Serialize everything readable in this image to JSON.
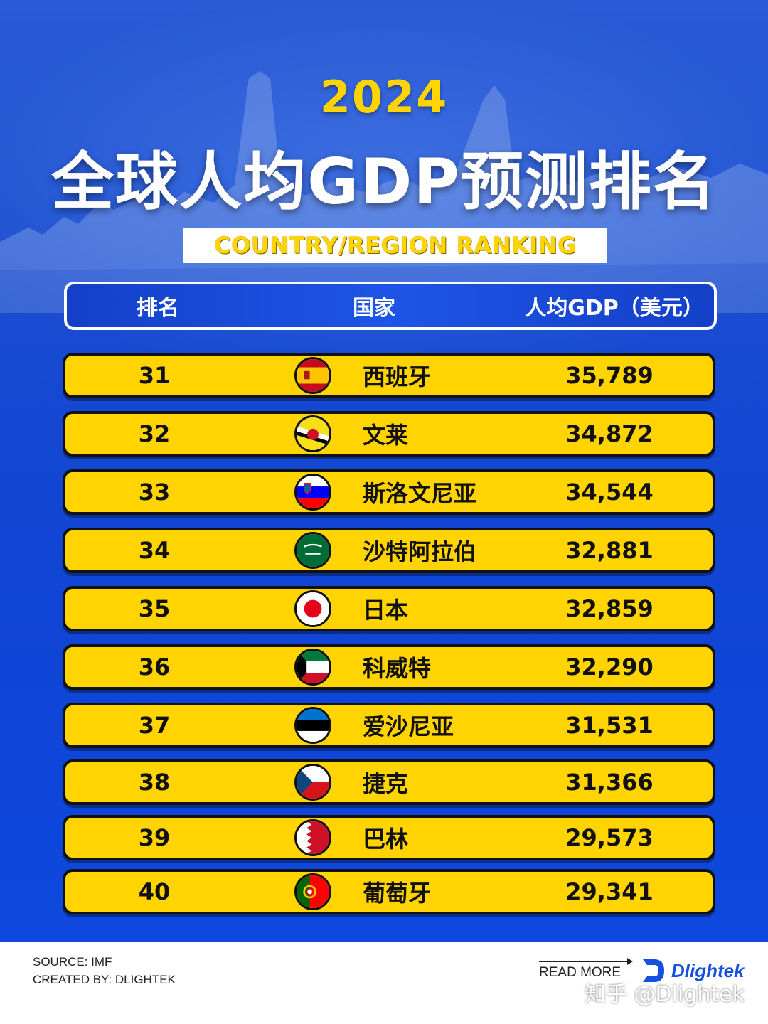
{
  "header": {
    "year": "2024",
    "title": "全球人均GDP预测排名",
    "subtitle": "COUNTRY/REGION RANKING"
  },
  "columns": {
    "rank": "排名",
    "country": "国家",
    "gdp": "人均GDP（美元）"
  },
  "rows": [
    {
      "rank": "31",
      "country": "西班牙",
      "gdp": "35,789",
      "flag": "spain-flag-icon"
    },
    {
      "rank": "32",
      "country": "文莱",
      "gdp": "34,872",
      "flag": "brunei-flag-icon"
    },
    {
      "rank": "33",
      "country": "斯洛文尼亚",
      "gdp": "34,544",
      "flag": "slovenia-flag-icon"
    },
    {
      "rank": "34",
      "country": "沙特阿拉伯",
      "gdp": "32,881",
      "flag": "saudi-arabia-flag-icon"
    },
    {
      "rank": "35",
      "country": "日本",
      "gdp": "32,859",
      "flag": "japan-flag-icon"
    },
    {
      "rank": "36",
      "country": "科威特",
      "gdp": "32,290",
      "flag": "kuwait-flag-icon"
    },
    {
      "rank": "37",
      "country": "爱沙尼亚",
      "gdp": "31,531",
      "flag": "estonia-flag-icon"
    },
    {
      "rank": "38",
      "country": "捷克",
      "gdp": "31,366",
      "flag": "czech-flag-icon"
    },
    {
      "rank": "39",
      "country": "巴林",
      "gdp": "29,573",
      "flag": "bahrain-flag-icon"
    },
    {
      "rank": "40",
      "country": "葡萄牙",
      "gdp": "29,341",
      "flag": "portugal-flag-icon"
    }
  ],
  "footer": {
    "source": "SOURCE: IMF",
    "created_by": "CREATED BY: DLIGHTEK",
    "read_more": "READ MORE",
    "brand": "Dlightek",
    "watermark": "知乎 @Dlightek"
  },
  "colors": {
    "background": "#1446c8",
    "accent": "#ffd400",
    "row_border": "#111111",
    "brand": "#1550e0"
  }
}
